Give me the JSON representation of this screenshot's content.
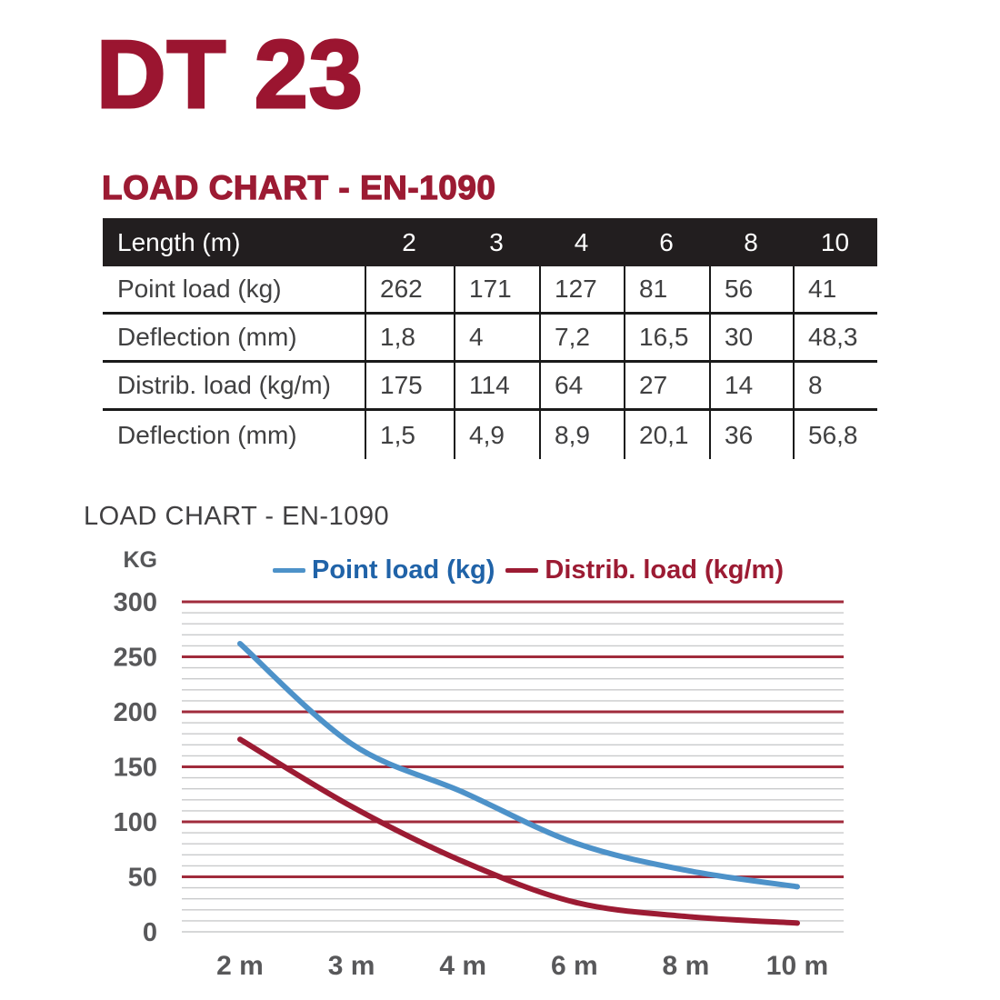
{
  "page": {
    "title": "DT 23"
  },
  "section": {
    "heading": "LOAD CHART - EN-1090"
  },
  "table": {
    "header": {
      "label": "Length (m)",
      "values": [
        "2",
        "3",
        "4",
        "6",
        "8",
        "10"
      ]
    },
    "rows": [
      {
        "label": "Point load (kg)",
        "values": [
          "262",
          "171",
          "127",
          "81",
          "56",
          "41"
        ]
      },
      {
        "label": "Deflection (mm)",
        "values": [
          "1,8",
          "4",
          "7,2",
          "16,5",
          "30",
          "48,3"
        ]
      },
      {
        "label": "Distrib. load (kg/m)",
        "values": [
          "175",
          "114",
          "64",
          "27",
          "14",
          "8"
        ]
      },
      {
        "label": "Deflection (mm)",
        "values": [
          "1,5",
          "4,9",
          "8,9",
          "20,1",
          "36",
          "56,8"
        ]
      }
    ]
  },
  "chart": {
    "title": "LOAD CHART - EN-1090",
    "unit_label": "KG"
  },
  "chart_data": {
    "type": "line",
    "title": "LOAD CHART - EN-1090",
    "ylabel": "KG",
    "xlabel": "",
    "categories": [
      "2 m",
      "3 m",
      "4 m",
      "6 m",
      "8 m",
      "10 m"
    ],
    "series": [
      {
        "name": "Point load (kg)",
        "values": [
          262,
          171,
          127,
          81,
          56,
          41
        ],
        "color": "#4D92C9",
        "label_color": "#2063A8"
      },
      {
        "name": "Distrib. load (kg/m)",
        "values": [
          175,
          114,
          64,
          27,
          14,
          8
        ],
        "color": "#9C1B33",
        "label_color": "#9C1B33"
      }
    ],
    "ylim": [
      0,
      300
    ],
    "y_major_step": 50,
    "y_minor_step": 10,
    "grid": {
      "major_color": "#A02B3C",
      "minor_color": "#C9CACB",
      "zero_line_color": "#C9CACB"
    },
    "axis_text_color": "#58585A",
    "legend_position": "top"
  },
  "colors": {
    "accent_maroon": "#9B1530",
    "table_header_bg": "#221E1F",
    "table_header_text": "#FFFFFF",
    "table_line": "#1A1A1A"
  }
}
